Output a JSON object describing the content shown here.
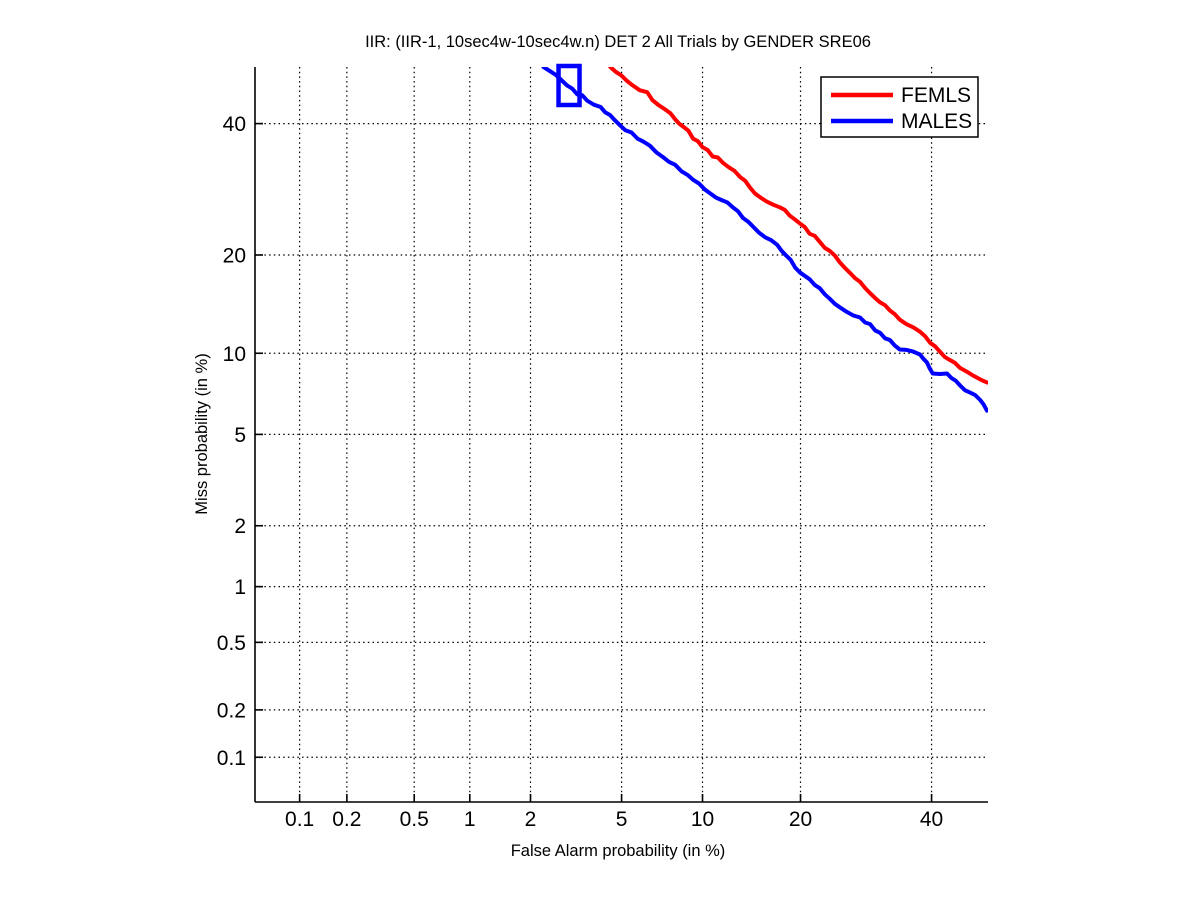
{
  "chart_data": {
    "type": "line",
    "subtype": "DET curve (normal-deviate / probit scale on both axes)",
    "title": "IIR: (IIR-1, 10sec4w-10sec4w.n) DET 2 All Trials by GENDER SRE06",
    "xlabel": "False Alarm probability (in %)",
    "ylabel": "Miss probability (in %)",
    "xlim": [
      0.05,
      50
    ],
    "ylim": [
      0.05,
      50
    ],
    "x_ticks": [
      "0.1",
      "0.2",
      "0.5",
      "1",
      "2",
      "5",
      "10",
      "20",
      "40"
    ],
    "y_ticks": [
      "0.1",
      "0.2",
      "0.5",
      "1",
      "2",
      "5",
      "10",
      "20",
      "40"
    ],
    "grid": "dotted",
    "background": "#ffffff",
    "axis_color": "#000000",
    "legend": {
      "position": "top-right",
      "entries": [
        "FEMLS",
        "MALES"
      ]
    },
    "series": [
      {
        "name": "FEMLS",
        "color": "#ff0000",
        "points": [
          [
            4.5,
            50.0
          ],
          [
            5.5,
            46.8
          ],
          [
            6.3,
            45.5
          ],
          [
            6.6,
            44.1
          ],
          [
            7.7,
            41.8
          ],
          [
            8.6,
            39.4
          ],
          [
            10.0,
            36.0
          ],
          [
            11.7,
            33.4
          ],
          [
            13.3,
            31.1
          ],
          [
            15.3,
            28.0
          ],
          [
            17.5,
            26.5
          ],
          [
            19.9,
            24.2
          ],
          [
            22.5,
            21.7
          ],
          [
            25.3,
            19.1
          ],
          [
            28.3,
            16.8
          ],
          [
            31.4,
            14.6
          ],
          [
            34.6,
            12.9
          ],
          [
            38.0,
            11.8
          ],
          [
            41.5,
            10.1
          ],
          [
            45.0,
            8.9
          ],
          [
            48.6,
            8.1
          ],
          [
            49.8,
            7.9
          ]
        ]
      },
      {
        "name": "MALES",
        "color": "#0000ff",
        "points": [
          [
            2.3,
            50.0
          ],
          [
            2.8,
            47.5
          ],
          [
            3.6,
            44.0
          ],
          [
            4.1,
            42.9
          ],
          [
            4.9,
            39.8
          ],
          [
            6.1,
            36.9
          ],
          [
            7.2,
            34.4
          ],
          [
            8.9,
            31.4
          ],
          [
            10.6,
            28.6
          ],
          [
            12.6,
            26.5
          ],
          [
            14.6,
            23.7
          ],
          [
            17.2,
            21.3
          ],
          [
            19.9,
            17.9
          ],
          [
            22.5,
            16.1
          ],
          [
            25.3,
            14.1
          ],
          [
            28.3,
            13.1
          ],
          [
            31.4,
            11.7
          ],
          [
            34.6,
            10.3
          ],
          [
            38.0,
            9.9
          ],
          [
            39.2,
            9.3
          ],
          [
            40.2,
            8.5
          ],
          [
            42.7,
            8.5
          ],
          [
            45.0,
            7.7
          ],
          [
            48.6,
            6.8
          ],
          [
            49.8,
            6.2
          ]
        ],
        "marker": {
          "shape": "open-rect",
          "false_alarm_pct": 3.0,
          "miss_pct": 46.7,
          "color": "#0000ff"
        }
      }
    ]
  }
}
